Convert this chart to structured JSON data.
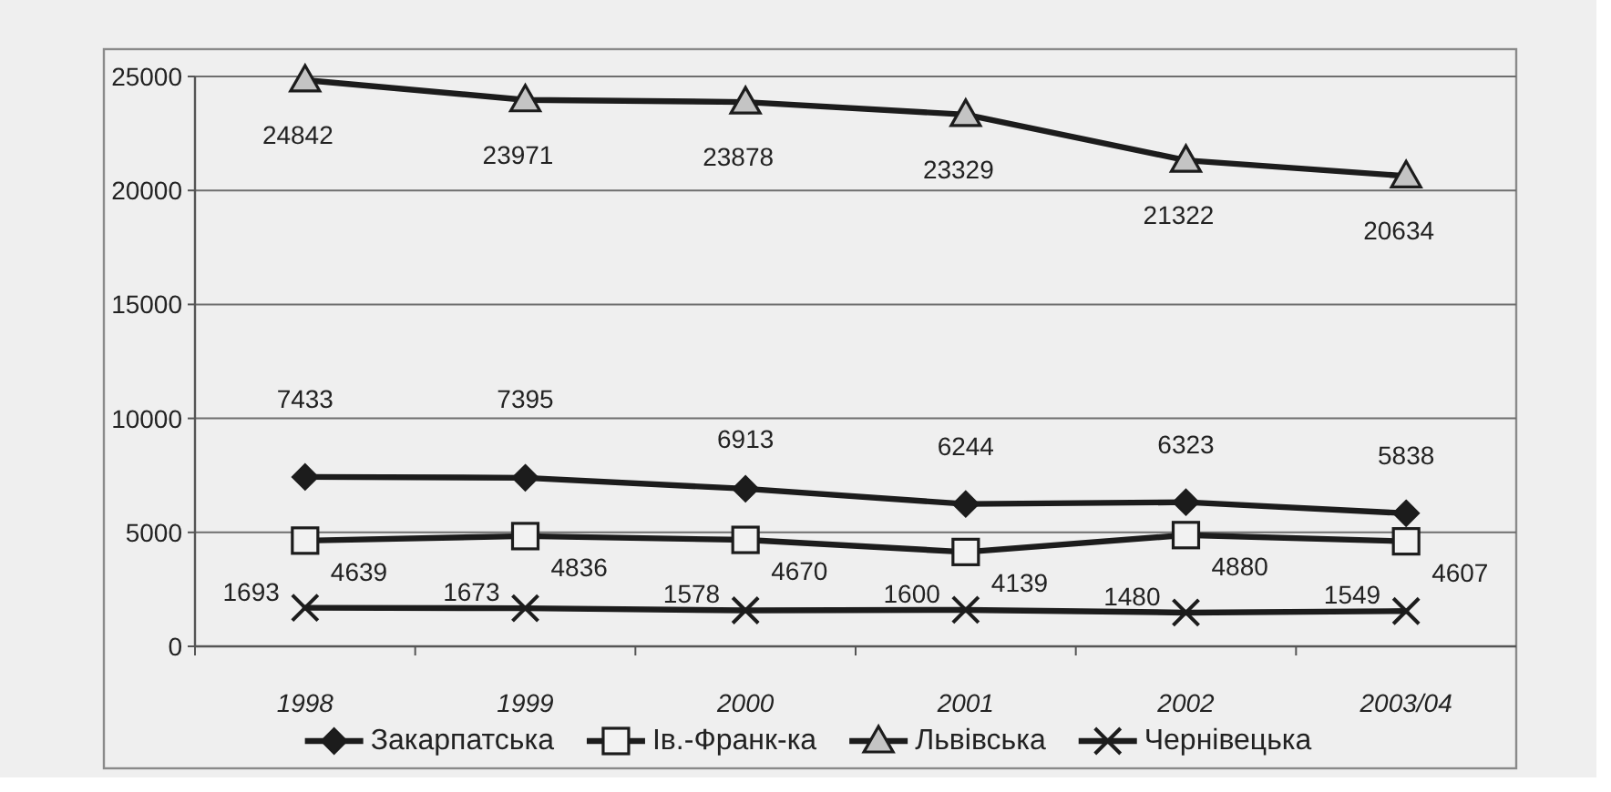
{
  "chart_data": {
    "type": "line",
    "categories": [
      "1998",
      "1999",
      "2000",
      "2001",
      "2002",
      "2003/04"
    ],
    "series": [
      {
        "name": "Закарпатська",
        "color": "#1c1c1c",
        "marker": "diamond",
        "values": [
          7433,
          7395,
          6913,
          6244,
          6323,
          5838
        ]
      },
      {
        "name": "Ів.-Франк-ка",
        "color": "#1c1c1c",
        "marker": "square",
        "values": [
          4639,
          4836,
          4670,
          4139,
          4880,
          4607
        ]
      },
      {
        "name": "Львівська",
        "color": "#1c1c1c",
        "marker": "triangle",
        "values": [
          24842,
          23971,
          23878,
          23329,
          21322,
          20634
        ]
      },
      {
        "name": "Чернівецька",
        "color": "#1c1c1c",
        "marker": "cross",
        "values": [
          1693,
          1673,
          1578,
          1600,
          1480,
          1549
        ]
      }
    ],
    "ylim": [
      0,
      25000
    ],
    "yticks": [
      0,
      5000,
      10000,
      15000,
      20000,
      25000
    ],
    "grid": "y",
    "legend": "bottom",
    "data_labels": true
  }
}
